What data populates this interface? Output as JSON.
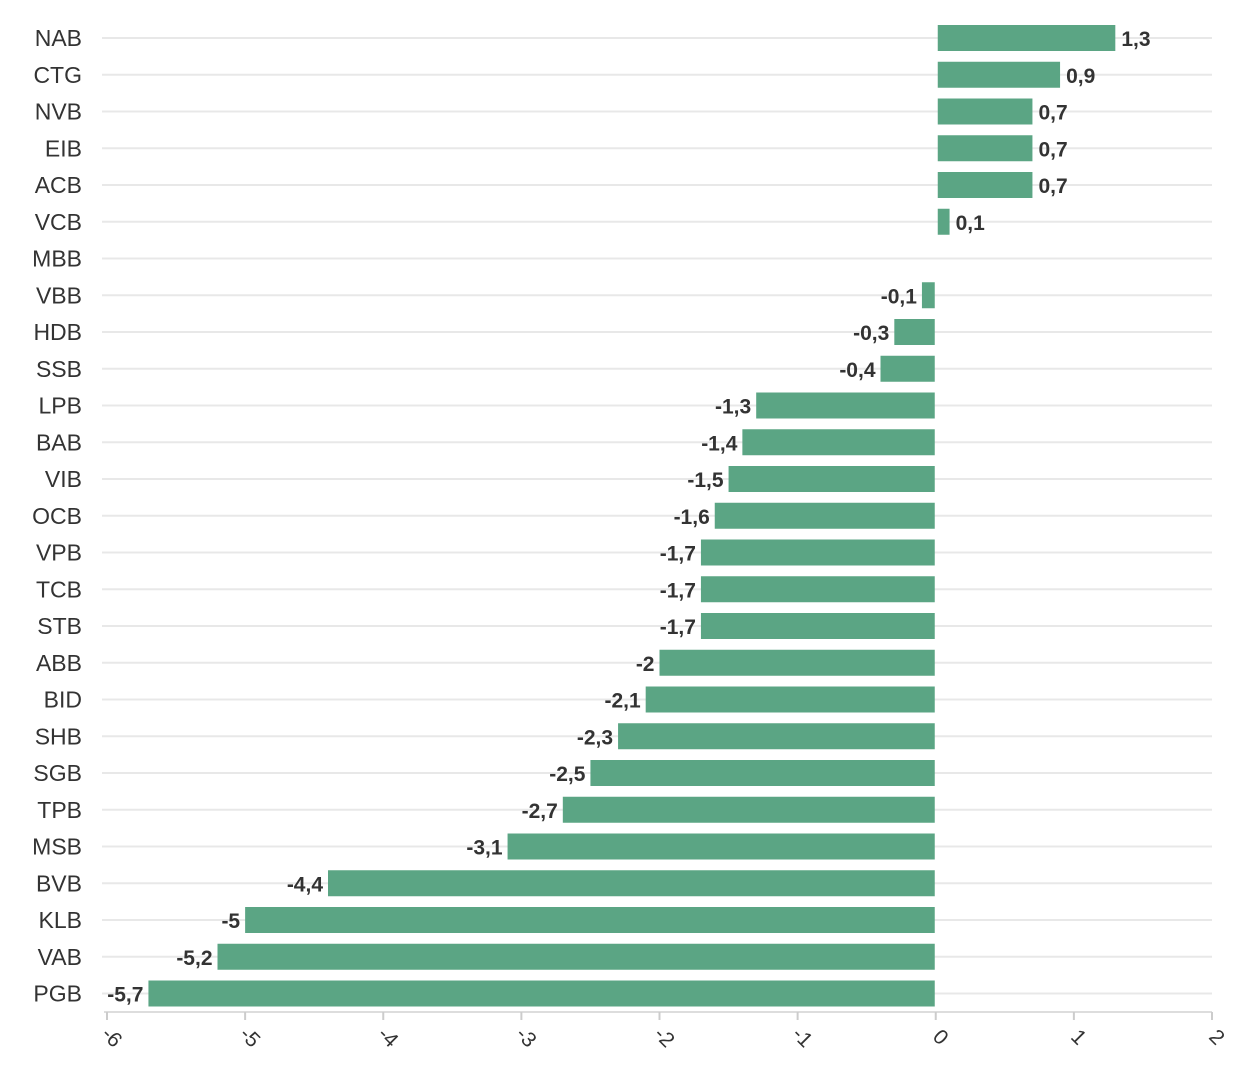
{
  "chart_data": {
    "type": "bar",
    "orientation": "horizontal",
    "title": "",
    "xlabel": "",
    "ylabel": "",
    "categories": [
      "NAB",
      "CTG",
      "NVB",
      "EIB",
      "ACB",
      "VCB",
      "MBB",
      "VBB",
      "HDB",
      "SSB",
      "LPB",
      "BAB",
      "VIB",
      "OCB",
      "VPB",
      "TCB",
      "STB",
      "ABB",
      "BID",
      "SHB",
      "SGB",
      "TPB",
      "MSB",
      "BVB",
      "KLB",
      "VAB",
      "PGB"
    ],
    "values": [
      1.3,
      0.9,
      0.7,
      0.7,
      0.7,
      0.1,
      0,
      -0.1,
      -0.3,
      -0.4,
      -1.3,
      -1.4,
      -1.5,
      -1.6,
      -1.7,
      -1.7,
      -1.7,
      -2,
      -2.1,
      -2.3,
      -2.5,
      -2.7,
      -3.1,
      -4.4,
      -5,
      -5.2,
      -5.7
    ],
    "value_labels": [
      "1,3",
      "0,9",
      "0,7",
      "0,7",
      "0,7",
      "0,1",
      "",
      "-0,1",
      "-0,3",
      "-0,4",
      "-1,3",
      "-1,4",
      "-1,5",
      "-1,6",
      "-1,7",
      "-1,7",
      "-1,7",
      "-2",
      "-2,1",
      "-2,3",
      "-2,5",
      "-2,7",
      "-3,1",
      "-4,4",
      "-5",
      "-5,2",
      "-5,7"
    ],
    "xlim": [
      -6,
      2
    ],
    "xticks": [
      -6,
      -5,
      -4,
      -3,
      -2,
      -1,
      0,
      1,
      2
    ],
    "xtick_labels": [
      "-6",
      "-5",
      "-4",
      "-3",
      "-2",
      "-1",
      "0",
      "1",
      "2"
    ],
    "bar_color": "#5ba584",
    "grid": true,
    "legend": "none"
  }
}
